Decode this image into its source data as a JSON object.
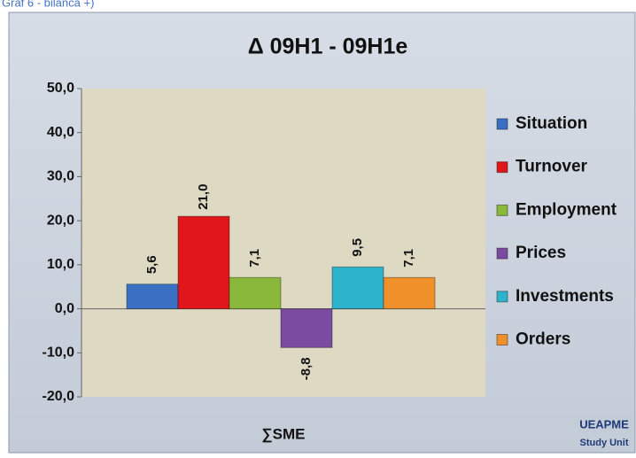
{
  "caption": "Graf 6 - bilanca +)",
  "chart_data": {
    "type": "bar",
    "title": "Δ 09H1 - 09H1e",
    "categories": [
      "∑SME"
    ],
    "series": [
      {
        "name": "Situation",
        "color": "#3a6fc4",
        "values": [
          5.6
        ],
        "value_labels": [
          "5,6"
        ]
      },
      {
        "name": "Turnover",
        "color": "#e0161a",
        "values": [
          21.0
        ],
        "value_labels": [
          "21,0"
        ]
      },
      {
        "name": "Employment",
        "color": "#8ab83a",
        "values": [
          7.1
        ],
        "value_labels": [
          "7,1"
        ]
      },
      {
        "name": "Prices",
        "color": "#7a4ba0",
        "values": [
          -8.8
        ],
        "value_labels": [
          "-8,8"
        ]
      },
      {
        "name": "Investments",
        "color": "#2eb3cc",
        "values": [
          9.5
        ],
        "value_labels": [
          "9,5"
        ]
      },
      {
        "name": "Orders",
        "color": "#f0902a",
        "values": [
          7.1
        ],
        "value_labels": [
          "7,1"
        ]
      }
    ],
    "ylim": [
      -20,
      50
    ],
    "yticks": [
      {
        "value": -20,
        "label": "-20,0"
      },
      {
        "value": -10,
        "label": "-10,0"
      },
      {
        "value": 0,
        "label": "0,0"
      },
      {
        "value": 10,
        "label": "10,0"
      },
      {
        "value": 20,
        "label": "20,0"
      },
      {
        "value": 30,
        "label": "30,0"
      },
      {
        "value": 40,
        "label": "40,0"
      },
      {
        "value": 50,
        "label": "50,0"
      }
    ],
    "grid": false,
    "legend": "right",
    "annotations": [
      "UEAPME",
      "Study Unit"
    ]
  }
}
